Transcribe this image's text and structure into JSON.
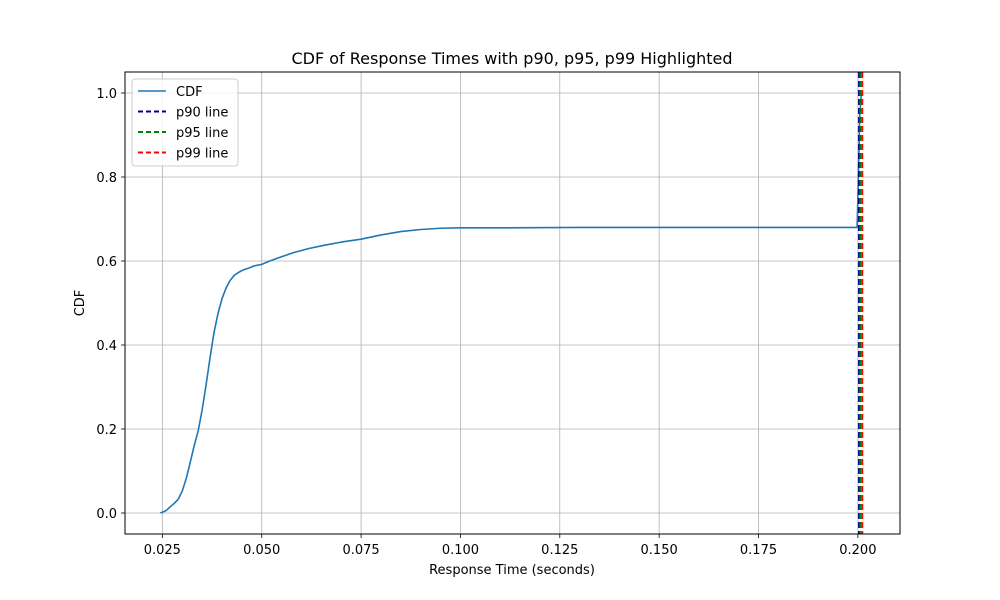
{
  "chart_data": {
    "type": "line",
    "title": "CDF of Response Times with p90, p95, p99 Highlighted",
    "xlabel": "Response Time (seconds)",
    "ylabel": "CDF",
    "xlim": [
      0.0156,
      0.2106
    ],
    "ylim": [
      -0.05,
      1.05
    ],
    "xticks": [
      0.025,
      0.05,
      0.075,
      0.1,
      0.125,
      0.15,
      0.175,
      0.2
    ],
    "xtick_labels": [
      "0.025",
      "0.050",
      "0.075",
      "0.100",
      "0.125",
      "0.150",
      "0.175",
      "0.200"
    ],
    "yticks": [
      0.0,
      0.2,
      0.4,
      0.6,
      0.8,
      1.0
    ],
    "ytick_labels": [
      "0.0",
      "0.2",
      "0.4",
      "0.6",
      "0.8",
      "1.0"
    ],
    "grid": true,
    "legend_position": "top-left",
    "series": [
      {
        "name": "CDF",
        "color": "#1f77b4",
        "style": "solid",
        "x": [
          0.0245,
          0.026,
          0.027,
          0.028,
          0.029,
          0.03,
          0.031,
          0.032,
          0.033,
          0.034,
          0.035,
          0.036,
          0.037,
          0.038,
          0.039,
          0.04,
          0.041,
          0.042,
          0.043,
          0.044,
          0.045,
          0.046,
          0.047,
          0.048,
          0.05,
          0.052,
          0.055,
          0.058,
          0.062,
          0.066,
          0.07,
          0.075,
          0.08,
          0.085,
          0.09,
          0.095,
          0.1,
          0.11,
          0.13,
          0.15,
          0.175,
          0.1998,
          0.2,
          0.2005,
          0.2008,
          0.201
        ],
        "y": [
          0.0,
          0.006,
          0.015,
          0.023,
          0.033,
          0.052,
          0.082,
          0.12,
          0.16,
          0.195,
          0.245,
          0.305,
          0.37,
          0.43,
          0.475,
          0.51,
          0.535,
          0.553,
          0.565,
          0.572,
          0.577,
          0.581,
          0.584,
          0.588,
          0.592,
          0.6,
          0.61,
          0.62,
          0.63,
          0.638,
          0.645,
          0.652,
          0.662,
          0.67,
          0.675,
          0.678,
          0.679,
          0.679,
          0.68,
          0.68,
          0.68,
          0.68,
          0.75,
          0.95,
          0.99,
          1.0
        ]
      },
      {
        "name": "p90 line",
        "color": "#00008b",
        "style": "dashed",
        "x": 0.2003
      },
      {
        "name": "p95 line",
        "color": "#008000",
        "style": "dashed",
        "x": 0.2006
      },
      {
        "name": "p99 line",
        "color": "#ff0000",
        "style": "dashed",
        "x": 0.2011
      }
    ]
  }
}
